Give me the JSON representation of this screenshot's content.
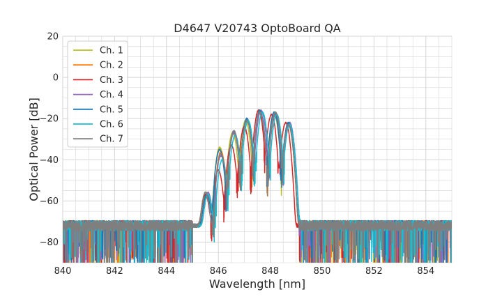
{
  "chart_data": {
    "type": "line",
    "title": "D4647 V20743 OptoBoard QA",
    "xlabel": "Wavelength [nm]",
    "ylabel": "Optical Power [dB]",
    "xlim": [
      840,
      855
    ],
    "ylim": [
      -90,
      20
    ],
    "xticks": [
      840,
      842,
      844,
      846,
      848,
      850,
      852,
      854
    ],
    "yticks": [
      -80,
      -60,
      -40,
      -20,
      0,
      20
    ],
    "xtick_labels": [
      "840",
      "842",
      "844",
      "846",
      "848",
      "850",
      "852",
      "854"
    ],
    "ytick_labels": [
      "−80",
      "−60",
      "−40",
      "−20",
      "0",
      "20"
    ],
    "grid": true,
    "legend_position": "top-left",
    "noise_floor_db": -72,
    "series": [
      {
        "name": "Ch. 1",
        "color": "#bcbd22",
        "peaks": [
          [
            845.55,
            -56
          ],
          [
            846.05,
            -34
          ],
          [
            846.55,
            -27
          ],
          [
            847.05,
            -21
          ],
          [
            847.6,
            -17
          ],
          [
            848.15,
            -18
          ],
          [
            848.7,
            -23
          ]
        ]
      },
      {
        "name": "Ch. 2",
        "color": "#ff7f0e",
        "peaks": [
          [
            845.6,
            -57
          ],
          [
            846.1,
            -36
          ],
          [
            846.6,
            -26
          ],
          [
            847.1,
            -21
          ],
          [
            847.6,
            -17
          ],
          [
            848.2,
            -17
          ],
          [
            848.7,
            -23
          ]
        ]
      },
      {
        "name": "Ch. 3",
        "color": "#d62728",
        "peaks": [
          [
            845.5,
            -57
          ],
          [
            846.0,
            -45
          ],
          [
            846.5,
            -33
          ],
          [
            847.0,
            -24
          ],
          [
            847.55,
            -16
          ],
          [
            848.05,
            -18
          ],
          [
            848.6,
            -22
          ]
        ]
      },
      {
        "name": "Ch. 4",
        "color": "#9467bd",
        "peaks": [
          [
            845.6,
            -56
          ],
          [
            846.1,
            -38
          ],
          [
            846.6,
            -27
          ],
          [
            847.1,
            -21
          ],
          [
            847.65,
            -16
          ],
          [
            848.2,
            -18
          ],
          [
            848.75,
            -22
          ]
        ]
      },
      {
        "name": "Ch. 5",
        "color": "#1f77b4",
        "peaks": [
          [
            845.55,
            -57
          ],
          [
            846.05,
            -35
          ],
          [
            846.6,
            -26
          ],
          [
            847.1,
            -20
          ],
          [
            847.6,
            -16
          ],
          [
            848.15,
            -17
          ],
          [
            848.7,
            -22
          ]
        ]
      },
      {
        "name": "Ch. 6",
        "color": "#17becf",
        "peaks": [
          [
            845.6,
            -57
          ],
          [
            846.15,
            -40
          ],
          [
            846.65,
            -28
          ],
          [
            847.15,
            -21
          ],
          [
            847.7,
            -17
          ],
          [
            848.25,
            -18
          ],
          [
            848.75,
            -23
          ]
        ]
      },
      {
        "name": "Ch. 7",
        "color": "#7f7f7f",
        "peaks": [
          [
            845.5,
            -56
          ],
          [
            846.1,
            -37
          ],
          [
            846.6,
            -26
          ],
          [
            847.1,
            -21
          ],
          [
            847.6,
            -17
          ],
          [
            848.2,
            -17
          ],
          [
            848.7,
            -23
          ]
        ]
      }
    ]
  }
}
